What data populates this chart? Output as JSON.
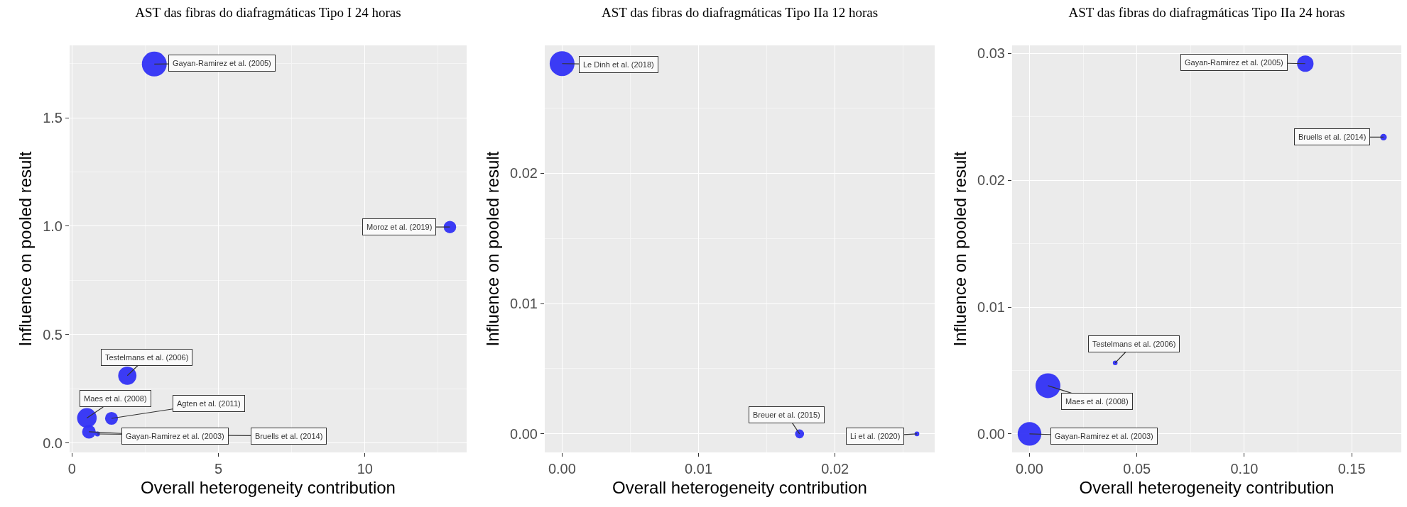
{
  "chart_data": [
    {
      "type": "bubble",
      "title": "AST das fibras do diafragmáticas Tipo I 24 horas",
      "xlabel": "Overall heterogeneity contribution",
      "ylabel": "Influence on pooled result",
      "color": "#3232f5",
      "grid": true,
      "x": [
        2.81,
        12.9,
        1.89,
        0.51,
        1.35,
        0.58,
        0.87
      ],
      "values": [
        1.748,
        0.996,
        0.31,
        0.115,
        0.113,
        0.051,
        0.041
      ],
      "sizes": [
        1,
        0.25,
        0.54,
        0.62,
        0.27,
        0.3,
        0.04
      ],
      "annotations": [
        {
          "text": "Gayan-Ramirez et al. (2005)",
          "x": 2.81,
          "y": 1.748
        },
        {
          "text": "Moroz et al. (2019)",
          "x": 12.9,
          "y": 0.996
        },
        {
          "text": "Testelmans et al. (2006)",
          "x": 1.89,
          "y": 0.31
        },
        {
          "text": "Maes et al. (2008)",
          "x": 0.51,
          "y": 0.115
        },
        {
          "text": "Agten et al. (2011)",
          "x": 1.35,
          "y": 0.113
        },
        {
          "text": "Gayan-Ramirez et al. (2003)",
          "x": 0.58,
          "y": 0.051
        },
        {
          "text": "Bruells et al. (2014)",
          "x": 0.87,
          "y": 0.041
        }
      ],
      "xlim": [
        -0.08,
        13.47
      ],
      "ylim": [
        -0.044,
        1.834
      ],
      "xticks": [
        0,
        5,
        10
      ],
      "yticks": [
        {
          "value": 0,
          "label": "0.0"
        },
        {
          "value": 0.5,
          "label": "0.5"
        },
        {
          "value": 1,
          "label": "1.0"
        },
        {
          "value": 1.5,
          "label": "1.5"
        }
      ]
    },
    {
      "type": "bubble",
      "title": "AST das fibras do diafragmáticas Tipo IIa 12 horas",
      "xlabel": "Overall heterogeneity contribution",
      "ylabel": "Influence on pooled result",
      "color": "#3232f5",
      "grid": true,
      "x": [
        0,
        0.0174,
        0.026
      ],
      "values": [
        0.0284,
        0,
        0
      ],
      "sizes": [
        1,
        0.13,
        0.036
      ],
      "annotations": [
        {
          "text": "Le Dinh et al. (2018)",
          "x": 0,
          "y": 0.0284
        },
        {
          "text": "Breuer et al. (2015)",
          "x": 0.0174,
          "y": 0
        },
        {
          "text": "Li et al. (2020)",
          "x": 0.026,
          "y": 0
        }
      ],
      "xlim": [
        -0.00127,
        0.0273
      ],
      "ylim": [
        -0.00142,
        0.0298
      ],
      "xticks": [
        {
          "value": 0,
          "label": "0.00"
        },
        {
          "value": 0.01,
          "label": "0.01"
        },
        {
          "value": 0.02,
          "label": "0.02"
        }
      ],
      "yticks": [
        {
          "value": 0,
          "label": "0.00"
        },
        {
          "value": 0.01,
          "label": "0.01"
        },
        {
          "value": 0.02,
          "label": "0.02"
        }
      ]
    },
    {
      "type": "bubble",
      "title": "AST das fibras do diafragmáticas Tipo IIa 24 horas",
      "xlabel": "Overall heterogeneity contribution",
      "ylabel": "Influence on pooled result",
      "color": "#3232f5",
      "grid": true,
      "x": [
        0.1284,
        0.1648,
        0.0399,
        0.0086,
        0
      ],
      "values": [
        0.0292,
        0.0234,
        0.0056,
        0.0038,
        0
      ],
      "sizes": [
        0.44,
        0.07,
        0.036,
        1,
        0.91
      ],
      "annotations": [
        {
          "text": "Gayan-Ramirez et al. (2005)",
          "x": 0.1284,
          "y": 0.0292
        },
        {
          "text": "Bruells et al. (2014)",
          "x": 0.1648,
          "y": 0.0234
        },
        {
          "text": "Testelmans et al. (2006)",
          "x": 0.0399,
          "y": 0.0056
        },
        {
          "text": "Maes et al. (2008)",
          "x": 0.0086,
          "y": 0.0038
        },
        {
          "text": "Gayan-Ramirez et al. (2003)",
          "x": 0,
          "y": 0
        }
      ],
      "xlim": [
        -0.0081,
        0.1731
      ],
      "ylim": [
        -0.00146,
        0.03064
      ],
      "xticks": [
        {
          "value": 0,
          "label": "0.00"
        },
        {
          "value": 0.05,
          "label": "0.05"
        },
        {
          "value": 0.1,
          "label": "0.10"
        },
        {
          "value": 0.15,
          "label": "0.15"
        }
      ],
      "yticks": [
        {
          "value": 0,
          "label": "0.00"
        },
        {
          "value": 0.01,
          "label": "0.01"
        },
        {
          "value": 0.02,
          "label": "0.02"
        },
        {
          "value": 0.03,
          "label": "0.03"
        }
      ]
    }
  ]
}
